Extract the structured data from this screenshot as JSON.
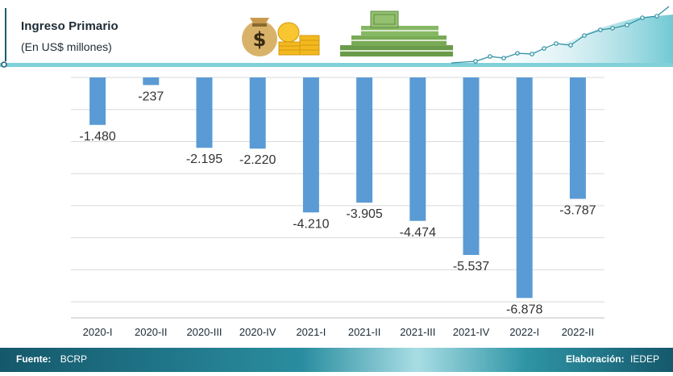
{
  "header": {
    "title": "Ingreso Primario",
    "subtitle": "(En US$ millones)",
    "decor_icons": [
      "money-bag-icon",
      "coin-stack-icon",
      "cash-stack-icon",
      "growth-line-icon"
    ]
  },
  "chart_data": {
    "type": "bar",
    "title": "Ingreso Primario",
    "subtitle": "(En US$ millones)",
    "xlabel": "",
    "ylabel": "",
    "ylim": [
      -7500,
      0
    ],
    "grid": true,
    "categories": [
      "2020-I",
      "2020-II",
      "2020-III",
      "2020-IV",
      "2021-I",
      "2021-II",
      "2021-III",
      "2021-IV",
      "2022-I",
      "2022-II"
    ],
    "values": [
      -1480,
      -237,
      -2195,
      -2220,
      -4210,
      -3905,
      -4474,
      -5537,
      -6878,
      -3787
    ],
    "labels": [
      "-1.480",
      "-237",
      "-2.195",
      "-2.220",
      "-4.210",
      "-3.905",
      "-4.474",
      "-5.537",
      "-6.878",
      "-3.787"
    ],
    "bar_color": "#5b9bd5"
  },
  "footer": {
    "source_label": "Fuente:",
    "source_value": "BCRP",
    "credit_label": "Elaboración:",
    "credit_value": "IEDEP"
  },
  "colors": {
    "accent_teal": "#62c3cf",
    "dark_teal": "#1d5c70",
    "footer_bg": "#14586b",
    "grid": "#d9d9d9"
  }
}
